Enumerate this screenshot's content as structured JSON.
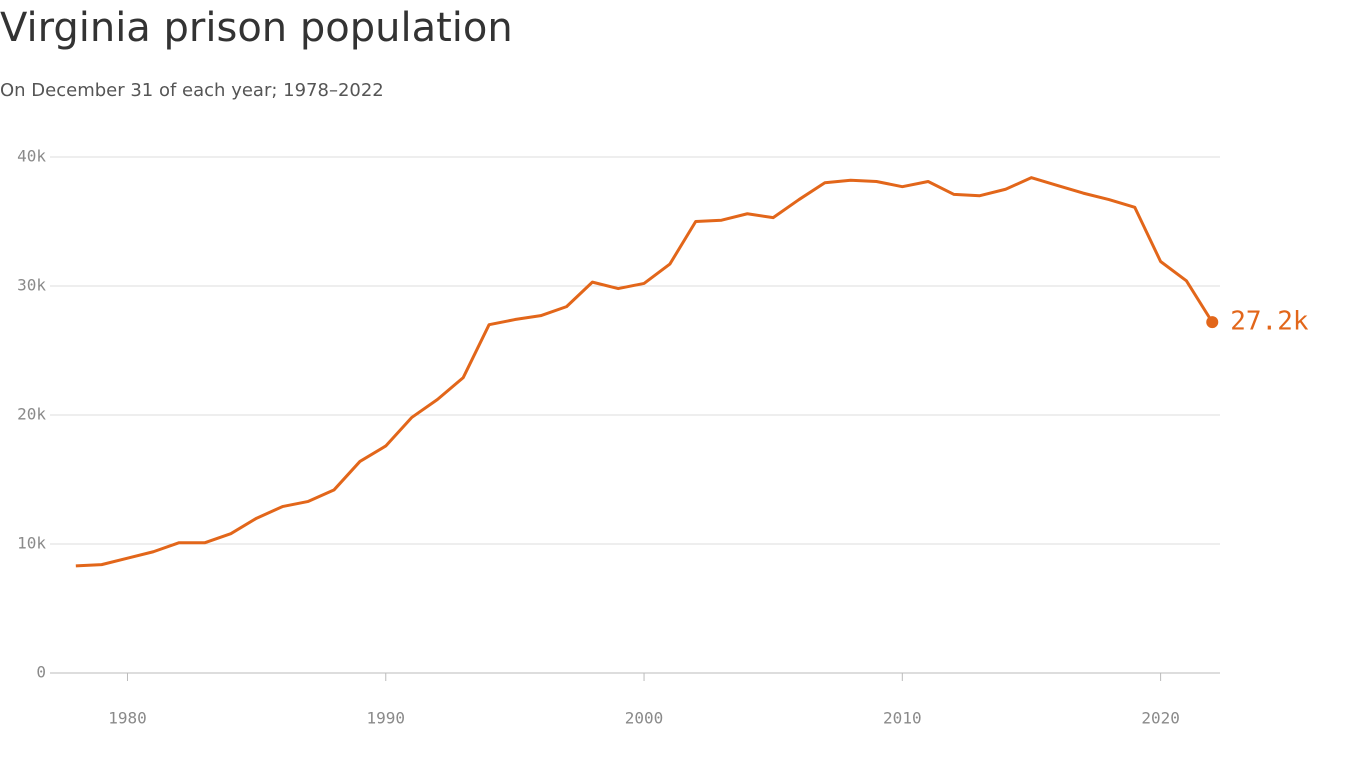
{
  "chart_data": {
    "type": "line",
    "title": "Virginia prison population",
    "subtitle": "On December 31 of each year; 1978–2022",
    "x": [
      1978,
      1979,
      1980,
      1981,
      1982,
      1983,
      1984,
      1985,
      1986,
      1987,
      1988,
      1989,
      1990,
      1991,
      1992,
      1993,
      1994,
      1995,
      1996,
      1997,
      1998,
      1999,
      2000,
      2001,
      2002,
      2003,
      2004,
      2005,
      2006,
      2007,
      2008,
      2009,
      2010,
      2011,
      2012,
      2013,
      2014,
      2015,
      2016,
      2017,
      2018,
      2019,
      2020,
      2021,
      2022
    ],
    "series": [
      {
        "color": "#e2661a",
        "values": [
          8300,
          8400,
          8900,
          9400,
          10100,
          10100,
          10800,
          12000,
          12900,
          13300,
          14200,
          16400,
          17600,
          19800,
          21200,
          22900,
          27000,
          27400,
          27700,
          28400,
          30300,
          29800,
          30200,
          31700,
          35000,
          35100,
          35600,
          35300,
          36700,
          38000,
          38200,
          38100,
          37700,
          38100,
          37100,
          37000,
          37500,
          38400,
          37800,
          37200,
          36700,
          36100,
          31900,
          30400,
          27200
        ],
        "value_labels": [
          null,
          null,
          null,
          null,
          null,
          null,
          null,
          null,
          null,
          null,
          null,
          null,
          null,
          null,
          null,
          null,
          null,
          null,
          null,
          null,
          null,
          null,
          null,
          null,
          null,
          null,
          null,
          null,
          null,
          null,
          null,
          null,
          null,
          null,
          null,
          null,
          null,
          null,
          null,
          null,
          null,
          null,
          null,
          null,
          "27.2k"
        ]
      }
    ],
    "xlim": [
      1977,
      2022.3
    ],
    "xticks": [
      1980,
      1990,
      2000,
      2010,
      2020
    ],
    "ylim": [
      0,
      40000
    ],
    "yticks": [
      0,
      {
        "value": 10000,
        "label": "10k"
      },
      {
        "value": 20000,
        "label": "20k"
      },
      {
        "value": 30000,
        "label": "30k"
      },
      {
        "value": 40000,
        "label": "40k"
      }
    ],
    "grid": true
  }
}
